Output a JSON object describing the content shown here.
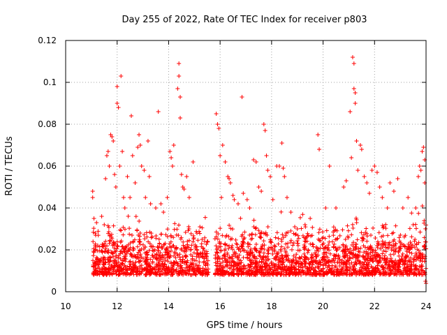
{
  "chart_data": {
    "type": "scatter",
    "title": "Day 255 of 2022, Rate Of TEC Index for receiver p803",
    "xlabel": "GPS time / hours",
    "ylabel": "ROTI / TECUs",
    "xlim": [
      10,
      24
    ],
    "ylim": [
      0,
      0.12
    ],
    "xticks": [
      10,
      12,
      14,
      16,
      18,
      20,
      22,
      24
    ],
    "xtick_labels": [
      "10",
      "12",
      "14",
      "16",
      "18",
      "20",
      "22",
      "24"
    ],
    "yticks": [
      0,
      0.02,
      0.04,
      0.06,
      0.08,
      0.1,
      0.12
    ],
    "ytick_labels": [
      "0",
      "0.02",
      "0.04",
      "0.06",
      "0.08",
      "0.1",
      "0.12"
    ],
    "grid": true,
    "marker": "plus",
    "color": "#ff0000",
    "data_gap_hours": [
      15.55,
      15.8
    ],
    "series": [
      {
        "name": "ROTI p803",
        "points": [
          [
            11.05,
            0.048
          ],
          [
            11.05,
            0.045
          ],
          [
            11.1,
            0.035
          ],
          [
            11.15,
            0.028
          ],
          [
            11.2,
            0.033
          ],
          [
            11.25,
            0.022
          ],
          [
            11.4,
            0.036
          ],
          [
            11.5,
            0.032
          ],
          [
            11.55,
            0.054
          ],
          [
            11.6,
            0.065
          ],
          [
            11.65,
            0.067
          ],
          [
            11.7,
            0.06
          ],
          [
            11.75,
            0.075
          ],
          [
            11.8,
            0.074
          ],
          [
            11.85,
            0.072
          ],
          [
            11.9,
            0.056
          ],
          [
            11.95,
            0.05
          ],
          [
            12.0,
            0.098
          ],
          [
            12.0,
            0.09
          ],
          [
            12.05,
            0.088
          ],
          [
            12.1,
            0.06
          ],
          [
            12.15,
            0.103
          ],
          [
            12.2,
            0.067
          ],
          [
            12.25,
            0.045
          ],
          [
            12.3,
            0.04
          ],
          [
            12.4,
            0.055
          ],
          [
            12.5,
            0.045
          ],
          [
            12.55,
            0.084
          ],
          [
            12.6,
            0.065
          ],
          [
            12.7,
            0.052
          ],
          [
            12.8,
            0.069
          ],
          [
            12.85,
            0.075
          ],
          [
            12.9,
            0.07
          ],
          [
            12.95,
            0.06
          ],
          [
            13.05,
            0.058
          ],
          [
            13.1,
            0.045
          ],
          [
            13.2,
            0.072
          ],
          [
            13.25,
            0.055
          ],
          [
            13.3,
            0.042
          ],
          [
            13.5,
            0.04
          ],
          [
            13.6,
            0.086
          ],
          [
            13.7,
            0.042
          ],
          [
            13.8,
            0.038
          ],
          [
            13.95,
            0.045
          ],
          [
            14.05,
            0.067
          ],
          [
            14.1,
            0.064
          ],
          [
            14.15,
            0.06
          ],
          [
            14.2,
            0.07
          ],
          [
            14.35,
            0.097
          ],
          [
            14.4,
            0.109
          ],
          [
            14.4,
            0.103
          ],
          [
            14.45,
            0.093
          ],
          [
            14.45,
            0.083
          ],
          [
            14.5,
            0.056
          ],
          [
            14.55,
            0.05
          ],
          [
            14.6,
            0.049
          ],
          [
            14.7,
            0.055
          ],
          [
            14.8,
            0.045
          ],
          [
            14.95,
            0.062
          ],
          [
            15.1,
            0.028
          ],
          [
            15.3,
            0.025
          ],
          [
            15.85,
            0.085
          ],
          [
            15.9,
            0.08
          ],
          [
            15.95,
            0.078
          ],
          [
            16.0,
            0.065
          ],
          [
            16.05,
            0.045
          ],
          [
            16.1,
            0.07
          ],
          [
            16.2,
            0.062
          ],
          [
            16.3,
            0.055
          ],
          [
            16.35,
            0.054
          ],
          [
            16.4,
            0.052
          ],
          [
            16.5,
            0.046
          ],
          [
            16.55,
            0.044
          ],
          [
            16.7,
            0.042
          ],
          [
            16.85,
            0.093
          ],
          [
            16.9,
            0.047
          ],
          [
            17.05,
            0.044
          ],
          [
            17.15,
            0.04
          ],
          [
            17.3,
            0.063
          ],
          [
            17.4,
            0.062
          ],
          [
            17.5,
            0.05
          ],
          [
            17.6,
            0.048
          ],
          [
            17.7,
            0.08
          ],
          [
            17.75,
            0.077
          ],
          [
            17.8,
            0.065
          ],
          [
            17.85,
            0.058
          ],
          [
            17.95,
            0.055
          ],
          [
            18.05,
            0.044
          ],
          [
            18.2,
            0.06
          ],
          [
            18.3,
            0.06
          ],
          [
            18.4,
            0.071
          ],
          [
            18.45,
            0.059
          ],
          [
            18.5,
            0.055
          ],
          [
            18.6,
            0.045
          ],
          [
            18.75,
            0.038
          ],
          [
            18.9,
            0.031
          ],
          [
            19.0,
            0.03
          ],
          [
            19.3,
            0.032
          ],
          [
            19.5,
            0.035
          ],
          [
            19.8,
            0.075
          ],
          [
            19.85,
            0.068
          ],
          [
            20.1,
            0.04
          ],
          [
            20.25,
            0.06
          ],
          [
            20.5,
            0.04
          ],
          [
            20.8,
            0.05
          ],
          [
            20.9,
            0.053
          ],
          [
            21.05,
            0.086
          ],
          [
            21.1,
            0.064
          ],
          [
            21.15,
            0.112
          ],
          [
            21.2,
            0.109
          ],
          [
            21.2,
            0.097
          ],
          [
            21.25,
            0.095
          ],
          [
            21.25,
            0.09
          ],
          [
            21.3,
            0.072
          ],
          [
            21.35,
            0.058
          ],
          [
            21.45,
            0.07
          ],
          [
            21.5,
            0.068
          ],
          [
            21.6,
            0.055
          ],
          [
            21.7,
            0.052
          ],
          [
            21.8,
            0.047
          ],
          [
            21.9,
            0.058
          ],
          [
            22.0,
            0.06
          ],
          [
            22.1,
            0.057
          ],
          [
            22.2,
            0.05
          ],
          [
            22.3,
            0.045
          ],
          [
            22.5,
            0.04
          ],
          [
            22.6,
            0.052
          ],
          [
            22.75,
            0.048
          ],
          [
            22.9,
            0.054
          ],
          [
            23.1,
            0.04
          ],
          [
            23.3,
            0.045
          ],
          [
            23.5,
            0.032
          ],
          [
            23.6,
            0.04
          ],
          [
            23.7,
            0.055
          ],
          [
            23.75,
            0.06
          ],
          [
            23.8,
            0.058
          ],
          [
            23.85,
            0.067
          ],
          [
            23.9,
            0.069
          ],
          [
            23.95,
            0.063
          ],
          [
            23.95,
            0.052
          ],
          [
            24.0,
            0.004
          ],
          [
            23.98,
            0.005
          ]
        ]
      }
    ]
  }
}
